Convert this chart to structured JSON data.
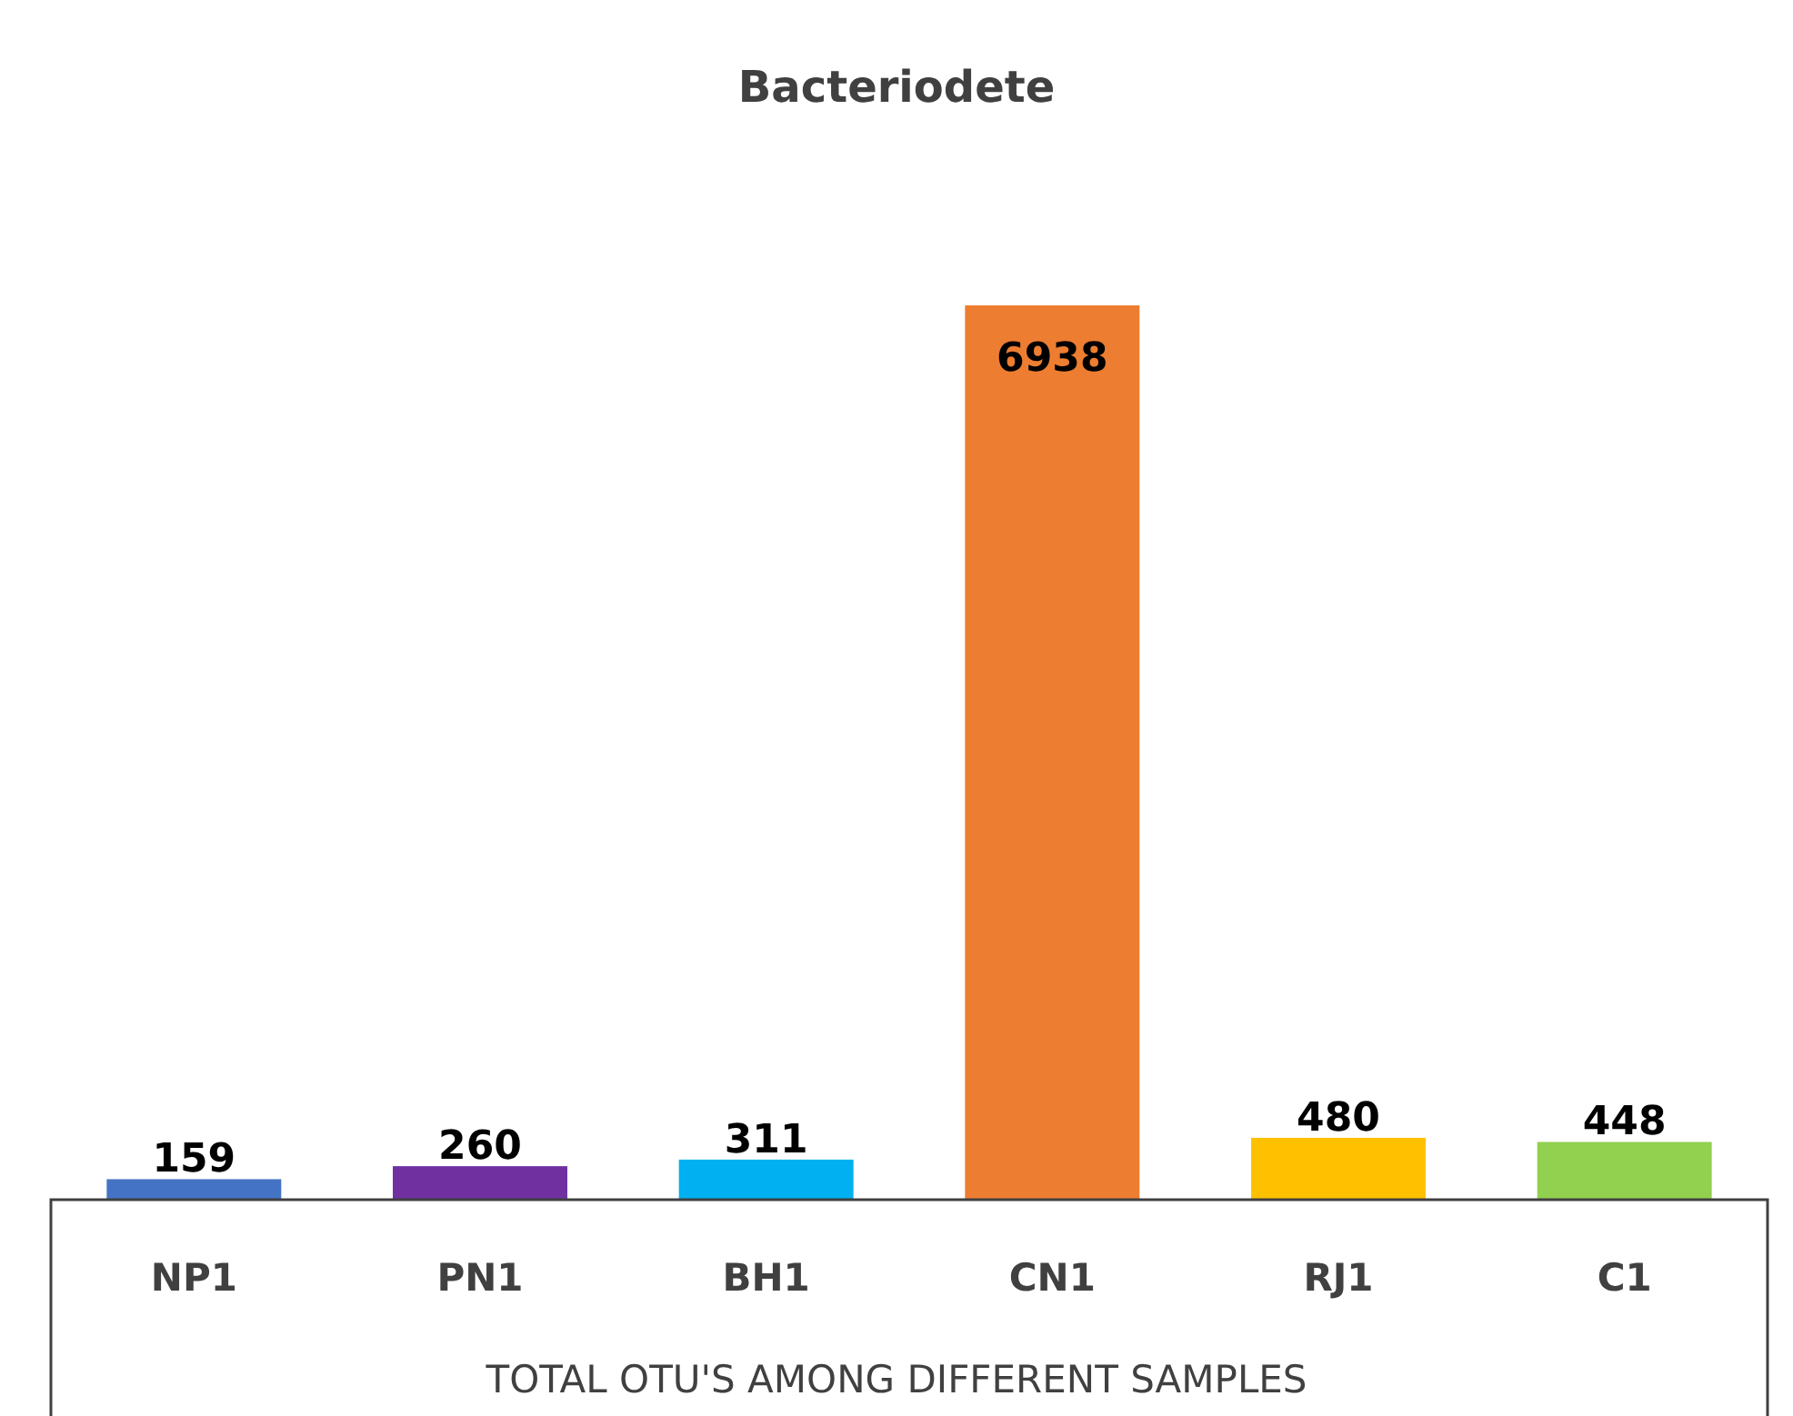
{
  "chart_data": {
    "type": "bar",
    "title": "Bacteriodete",
    "xlabel": "TOTAL OTU'S AMONG DIFFERENT SAMPLES",
    "categories": [
      "NP1",
      "PN1",
      "BH1",
      "CN1",
      "RJ1",
      "C1"
    ],
    "values": [
      159,
      260,
      311,
      6938,
      480,
      448
    ],
    "colors": [
      "#4472c4",
      "#7030a0",
      "#00b0f0",
      "#ed7d31",
      "#ffc000",
      "#92d050"
    ],
    "data_labels": true
  }
}
